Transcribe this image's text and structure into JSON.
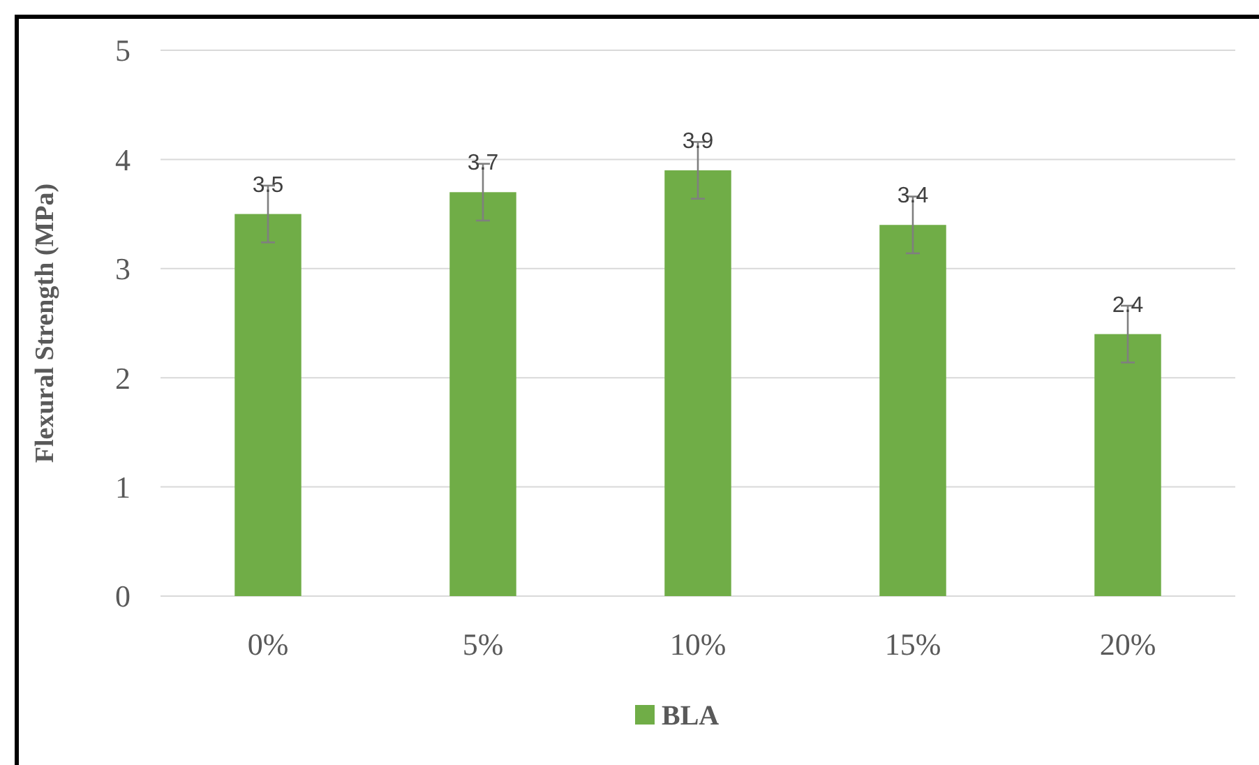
{
  "chart_data": {
    "type": "bar",
    "ylabel": "Flexural Strength (MPa)",
    "categories": [
      "0%",
      "5%",
      "10%",
      "15%",
      "20%"
    ],
    "series": [
      {
        "name": "BLA",
        "color": "#70ad47",
        "values": [
          3.5,
          3.7,
          3.9,
          3.4,
          2.4
        ],
        "errors": [
          0.26,
          0.26,
          0.26,
          0.26,
          0.26
        ]
      }
    ],
    "ylim": [
      0,
      5
    ],
    "yticks": [
      0,
      1,
      2,
      3,
      4,
      5
    ],
    "grid": "y",
    "legend": "bottom",
    "data_labels": true
  }
}
